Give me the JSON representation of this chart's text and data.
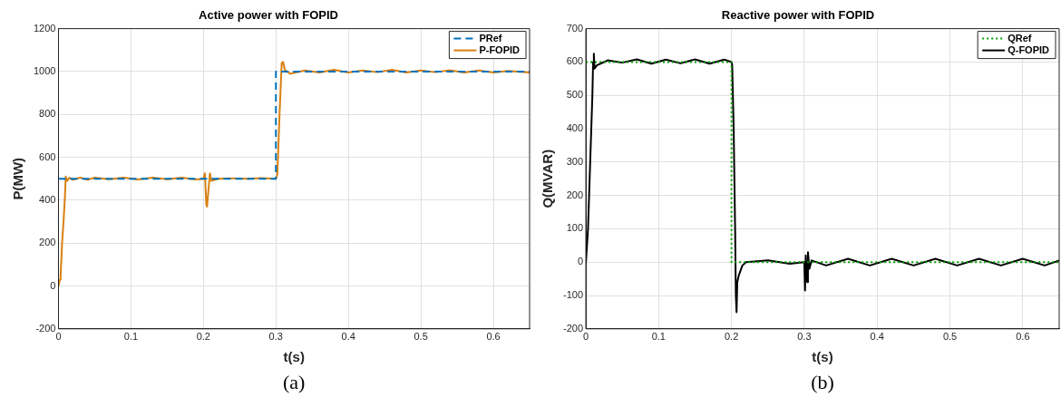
{
  "chart_data": [
    {
      "type": "line",
      "title": "Active power with FOPID",
      "xlabel": "t(s)",
      "ylabel": "P(MW)",
      "annotations": [
        "(a)"
      ],
      "xlim": [
        0,
        0.65
      ],
      "xticks": [
        0,
        0.1,
        0.2,
        0.3,
        0.4,
        0.5,
        0.6
      ],
      "ylim": [
        -200,
        1200
      ],
      "yticks": [
        -200,
        0,
        200,
        400,
        600,
        800,
        1000,
        1200
      ],
      "grid": true,
      "legend": "top right",
      "marker": "none",
      "series": [
        {
          "name": "PRef",
          "color": "#0072bd",
          "line_style": "dashed",
          "x": [
            0,
            0.3,
            0.3,
            0.65
          ],
          "values": [
            500,
            500,
            1000,
            1000
          ]
        },
        {
          "name": "P-FOPID",
          "color": "#d98010",
          "line_style": "solid",
          "x": [
            0,
            0.002,
            0.003,
            0.005,
            0.007,
            0.009,
            0.01,
            0.012,
            0.015,
            0.02,
            0.03,
            0.04,
            0.05,
            0.07,
            0.09,
            0.11,
            0.13,
            0.15,
            0.17,
            0.19,
            0.2,
            0.202,
            0.204,
            0.205,
            0.207,
            0.209,
            0.211,
            0.22,
            0.24,
            0.26,
            0.28,
            0.3,
            0.302,
            0.305,
            0.308,
            0.31,
            0.312,
            0.315,
            0.32,
            0.34,
            0.36,
            0.38,
            0.4,
            0.42,
            0.44,
            0.46,
            0.48,
            0.5,
            0.52,
            0.54,
            0.56,
            0.58,
            0.6,
            0.62,
            0.65
          ],
          "values": [
            0,
            30,
            50,
            200,
            300,
            420,
            510,
            490,
            505,
            495,
            505,
            495,
            505,
            498,
            505,
            497,
            505,
            498,
            505,
            497,
            500,
            525,
            380,
            370,
            450,
            525,
            490,
            500,
            502,
            500,
            503,
            500,
            520,
            800,
            1040,
            1045,
            1010,
            1000,
            990,
            1005,
            995,
            1008,
            995,
            1005,
            997,
            1008,
            995,
            1005,
            997,
            1006,
            995,
            1005,
            995,
            1003,
            995
          ]
        }
      ]
    },
    {
      "type": "line",
      "title": "Reactive power with FOPID",
      "xlabel": "t(s)",
      "ylabel": "Q(MVAR)",
      "annotations": [
        "(b)"
      ],
      "xlim": [
        0,
        0.65
      ],
      "xticks": [
        0,
        0.1,
        0.2,
        0.3,
        0.4,
        0.5,
        0.6
      ],
      "ylim": [
        -200,
        700
      ],
      "yticks": [
        -200,
        -100,
        0,
        100,
        200,
        300,
        400,
        500,
        600,
        700
      ],
      "grid": true,
      "legend": "top right",
      "marker": "none",
      "series": [
        {
          "name": "QRef",
          "color": "#00a000",
          "line_style": "dotted",
          "x": [
            0,
            0.2,
            0.2,
            0.65
          ],
          "values": [
            600,
            600,
            0,
            0
          ]
        },
        {
          "name": "Q-FOPID",
          "color": "#000000",
          "line_style": "solid",
          "x": [
            0,
            0.003,
            0.006,
            0.009,
            0.01,
            0.011,
            0.012,
            0.015,
            0.02,
            0.03,
            0.05,
            0.07,
            0.09,
            0.11,
            0.13,
            0.15,
            0.17,
            0.19,
            0.2,
            0.201,
            0.203,
            0.205,
            0.206,
            0.207,
            0.208,
            0.21,
            0.215,
            0.22,
            0.25,
            0.28,
            0.3,
            0.301,
            0.302,
            0.304,
            0.305,
            0.307,
            0.31,
            0.33,
            0.36,
            0.39,
            0.42,
            0.45,
            0.48,
            0.51,
            0.54,
            0.57,
            0.6,
            0.63,
            0.65
          ],
          "values": [
            -5,
            100,
            300,
            500,
            600,
            625,
            580,
            590,
            595,
            605,
            598,
            608,
            595,
            607,
            596,
            608,
            595,
            607,
            600,
            590,
            400,
            100,
            -100,
            -150,
            -60,
            -40,
            -10,
            0,
            5,
            -5,
            0,
            -85,
            20,
            -60,
            30,
            -20,
            5,
            -10,
            10,
            -10,
            10,
            -10,
            10,
            -10,
            10,
            -10,
            10,
            -10,
            5
          ]
        }
      ]
    }
  ]
}
